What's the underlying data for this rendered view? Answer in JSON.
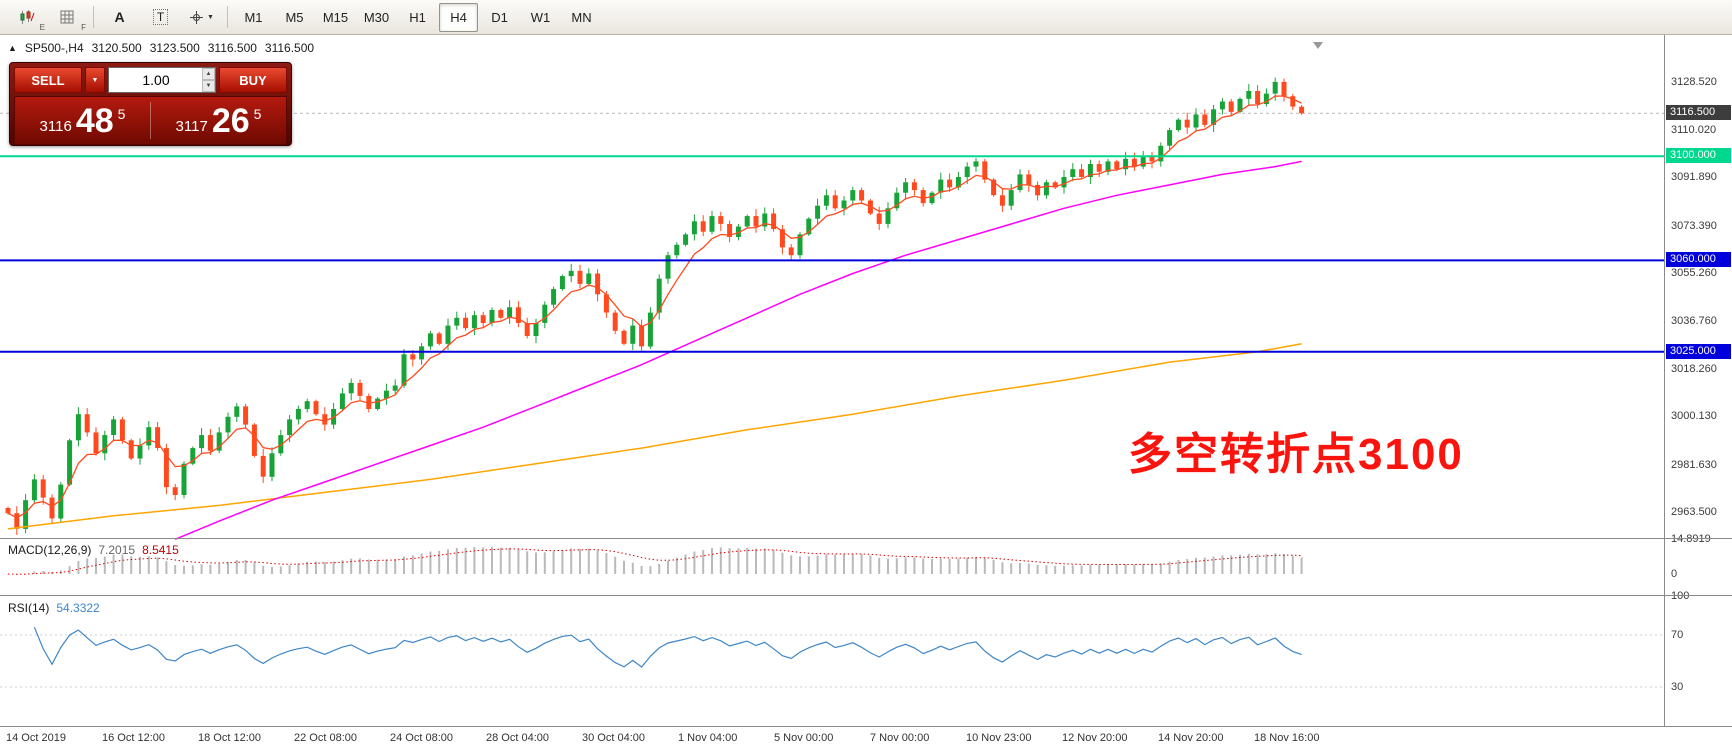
{
  "toolbar": {
    "icons": [
      {
        "name": "indicators-chart-icon",
        "sub": "E"
      },
      {
        "name": "objects-grid-icon",
        "sub": "F"
      },
      {
        "name": "arrow-tool-icon",
        "glyph": "A"
      },
      {
        "name": "text-tool-icon",
        "glyph": "T"
      },
      {
        "name": "crosshair-tool-icon",
        "glyph": "+"
      }
    ],
    "timeframes": [
      "M1",
      "M5",
      "M15",
      "M30",
      "H1",
      "H4",
      "D1",
      "W1",
      "MN"
    ],
    "active_timeframe": "H4"
  },
  "symbol_bar": {
    "symbol": "SP500-,H4",
    "open": "3120.500",
    "high": "3123.500",
    "low": "3116.500",
    "close": "3116.500"
  },
  "trade_panel": {
    "sell_label": "SELL",
    "buy_label": "BUY",
    "volume": "1.00",
    "sell_price": {
      "prefix": "3116",
      "big": "48",
      "sup": "5"
    },
    "buy_price": {
      "prefix": "3117",
      "big": "26",
      "sup": "5"
    }
  },
  "annotation": {
    "text": "多空转折点3100",
    "color": "#fb140e"
  },
  "price_axis": {
    "labels": [
      "3128.520",
      "3110.020",
      "3091.890",
      "3073.390",
      "3055.260",
      "3036.760",
      "3018.260",
      "3000.130",
      "2981.630",
      "2963.500"
    ],
    "tags": [
      {
        "text": "3116.500",
        "price": 3116.5,
        "bg": "#3d3d3d",
        "fg": "#ffffff"
      },
      {
        "text": "3100.000",
        "price": 3100,
        "bg": "#00d98d",
        "fg": "#ffffff"
      },
      {
        "text": "3060.000",
        "price": 3060,
        "bg": "#0000dc",
        "fg": "#ffffff"
      },
      {
        "text": "3025.000",
        "price": 3025,
        "bg": "#0000dc",
        "fg": "#ffffff"
      }
    ]
  },
  "indicators": {
    "macd": {
      "label": "MACD(12,26,9)",
      "value_main": "7.2015",
      "value_signal": "8.5415",
      "axis": [
        "14.8919",
        "0"
      ],
      "range": [
        -9,
        15
      ]
    },
    "rsi": {
      "label": "RSI(14)",
      "value": "54.3322",
      "axis": [
        "100",
        "70",
        "30"
      ],
      "levels": [
        70,
        30
      ],
      "range": [
        0,
        100
      ]
    }
  },
  "chart_data": {
    "type": "candlestick",
    "symbol": "SP500-",
    "timeframe": "H4",
    "title": "SP500- H4 with MACD(12,26,9), RSI(14), MAs and levels 3100/3060/3025",
    "price_range_visible": [
      2954,
      3146
    ],
    "up_color": "#17a337",
    "down_color": "#ff4a1f",
    "closes": [
      2963,
      2957,
      2968,
      2976,
      2969,
      2961,
      2974,
      2991,
      3001,
      2994,
      2986,
      2993,
      2999,
      2991,
      2984,
      2989,
      2996,
      2988,
      2973,
      2970,
      2982,
      2988,
      2993,
      2987,
      2994,
      3000,
      3004,
      2997,
      2985,
      2977,
      2986,
      2993,
      2999,
      3003,
      3006,
      3001,
      2997,
      3003,
      3009,
      3013,
      3008,
      3003,
      3007,
      3010,
      3012,
      3024,
      3022,
      3027,
      3032,
      3028,
      3035,
      3038,
      3034,
      3039,
      3036,
      3041,
      3038,
      3042,
      3036,
      3031,
      3036,
      3043,
      3049,
      3054,
      3056,
      3051,
      3055,
      3047,
      3040,
      3033,
      3028,
      3035,
      3027,
      3040,
      3053,
      3062,
      3066,
      3070,
      3075,
      3071,
      3077,
      3074,
      3069,
      3073,
      3077,
      3073,
      3078,
      3072,
      3065,
      3062,
      3070,
      3076,
      3081,
      3085,
      3080,
      3083,
      3087,
      3083,
      3078,
      3074,
      3080,
      3086,
      3090,
      3087,
      3082,
      3086,
      3091,
      3088,
      3092,
      3096,
      3098,
      3091,
      3085,
      3081,
      3087,
      3093,
      3089,
      3085,
      3090,
      3088,
      3092,
      3095,
      3092,
      3097,
      3094,
      3098,
      3095,
      3099,
      3096,
      3100,
      3098,
      3104,
      3110,
      3114,
      3111,
      3116,
      3112,
      3118,
      3121,
      3117,
      3122,
      3125,
      3120,
      3124,
      3128.5,
      3123,
      3119,
      3116.5
    ],
    "hlines": [
      {
        "price": 3116.5,
        "color": "#b9b9b9",
        "style": "dashed",
        "label": "3116.500 (bid)"
      },
      {
        "price": 3100,
        "color": "#00d98d",
        "style": "solid",
        "label": "3100.000"
      },
      {
        "price": 3060,
        "color": "#0000dc",
        "style": "solid",
        "label": "3060.000"
      },
      {
        "price": 3025,
        "color": "#0000dc",
        "style": "solid",
        "label": "3025.000"
      }
    ],
    "ma_fast": {
      "color": "#ff4a1f",
      "period": 6
    },
    "ma_mid": {
      "color": "#ff00ff",
      "points": [
        [
          19,
          2953
        ],
        [
          24,
          2960
        ],
        [
          30,
          2968
        ],
        [
          36,
          2975
        ],
        [
          42,
          2982
        ],
        [
          48,
          2989
        ],
        [
          54,
          2996
        ],
        [
          60,
          3004
        ],
        [
          66,
          3012
        ],
        [
          72,
          3020
        ],
        [
          78,
          3029
        ],
        [
          84,
          3038
        ],
        [
          90,
          3047
        ],
        [
          96,
          3055
        ],
        [
          102,
          3062
        ],
        [
          108,
          3068
        ],
        [
          114,
          3074
        ],
        [
          120,
          3080
        ],
        [
          126,
          3085
        ],
        [
          132,
          3089
        ],
        [
          138,
          3093
        ],
        [
          144,
          3096
        ],
        [
          147,
          3098
        ]
      ]
    },
    "ma_slow": {
      "color": "#ffa500",
      "points": [
        [
          0,
          2957
        ],
        [
          12,
          2962
        ],
        [
          24,
          2966
        ],
        [
          36,
          2971
        ],
        [
          48,
          2976
        ],
        [
          60,
          2982
        ],
        [
          72,
          2988
        ],
        [
          84,
          2995
        ],
        [
          96,
          3001
        ],
        [
          108,
          3008
        ],
        [
          120,
          3014
        ],
        [
          132,
          3021
        ],
        [
          142,
          3025
        ],
        [
          147,
          3028
        ]
      ]
    },
    "time_labels": [
      "14 Oct 2019",
      "16 Oct 12:00",
      "18 Oct 12:00",
      "22 Oct 08:00",
      "24 Oct 08:00",
      "28 Oct 04:00",
      "30 Oct 04:00",
      "1 Nov 04:00",
      "5 Nov 00:00",
      "7 Nov 00:00",
      "10 Nov 23:00",
      "12 Nov 20:00",
      "14 Nov 20:00",
      "18 Nov 16:00"
    ]
  }
}
